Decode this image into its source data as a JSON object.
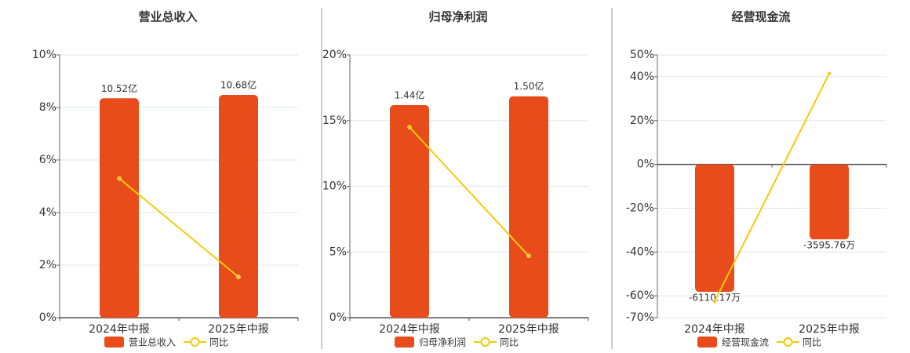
{
  "chart_data": [
    {
      "type": "combo",
      "title": "营业总收入",
      "categories": [
        "2024年中报",
        "2025年中报"
      ],
      "series": [
        {
          "name": "营业总收入",
          "type": "bar",
          "color": "#e84c1a",
          "axis": "y2",
          "values": [
            10.52,
            10.68
          ],
          "value_labels": [
            "10.52亿",
            "10.68亿"
          ]
        },
        {
          "name": "同比",
          "type": "line",
          "color": "#f2cc0c",
          "values": [
            5.3,
            1.55
          ]
        }
      ],
      "ylim": [
        0,
        10
      ],
      "yticks": [
        {
          "value": 0,
          "label": "0%"
        },
        {
          "value": 2,
          "label": "2%"
        },
        {
          "value": 4,
          "label": "4%"
        },
        {
          "value": 6,
          "label": "6%"
        },
        {
          "value": 8,
          "label": "8%"
        },
        {
          "value": 10,
          "label": "10%"
        }
      ],
      "y2lim": [
        0,
        12.6
      ],
      "grid": true
    },
    {
      "type": "combo",
      "title": "归母净利润",
      "categories": [
        "2024年中报",
        "2025年中报"
      ],
      "series": [
        {
          "name": "归母净利润",
          "type": "bar",
          "color": "#e84c1a",
          "axis": "y2",
          "values": [
            1.44,
            1.5
          ],
          "value_labels": [
            "1.44亿",
            "1.50亿"
          ]
        },
        {
          "name": "同比",
          "type": "line",
          "color": "#f2cc0c",
          "values": [
            14.5,
            4.7
          ]
        }
      ],
      "ylim": [
        0,
        20
      ],
      "yticks": [
        {
          "value": 0,
          "label": "0%"
        },
        {
          "value": 5,
          "label": "5%"
        },
        {
          "value": 10,
          "label": "10%"
        },
        {
          "value": 15,
          "label": "15%"
        },
        {
          "value": 20,
          "label": "20%"
        }
      ],
      "y2lim": [
        0,
        1.78
      ],
      "grid": true
    },
    {
      "type": "combo",
      "title": "经营现金流",
      "categories": [
        "2024年中报",
        "2025年中报"
      ],
      "series": [
        {
          "name": "经营现金流",
          "type": "bar",
          "color": "#e84c1a",
          "axis": "y2",
          "values": [
            -6110.17,
            -3595.76
          ],
          "value_labels": [
            "-6110.17万",
            "-3595.76万"
          ]
        },
        {
          "name": "同比",
          "type": "line",
          "color": "#f2cc0c",
          "values": [
            -62.5,
            41.5
          ]
        }
      ],
      "ylim": [
        -70,
        50
      ],
      "yticks": [
        {
          "value": -70,
          "label": "-70%"
        },
        {
          "value": -60,
          "label": "-60%"
        },
        {
          "value": -40,
          "label": "-40%"
        },
        {
          "value": -20,
          "label": "-20%"
        },
        {
          "value": 0,
          "label": "0%"
        },
        {
          "value": 20,
          "label": "20%"
        },
        {
          "value": 40,
          "label": "40%"
        },
        {
          "value": 50,
          "label": "50%"
        }
      ],
      "y2lim": [
        -7350,
        5250
      ],
      "grid": true
    }
  ]
}
